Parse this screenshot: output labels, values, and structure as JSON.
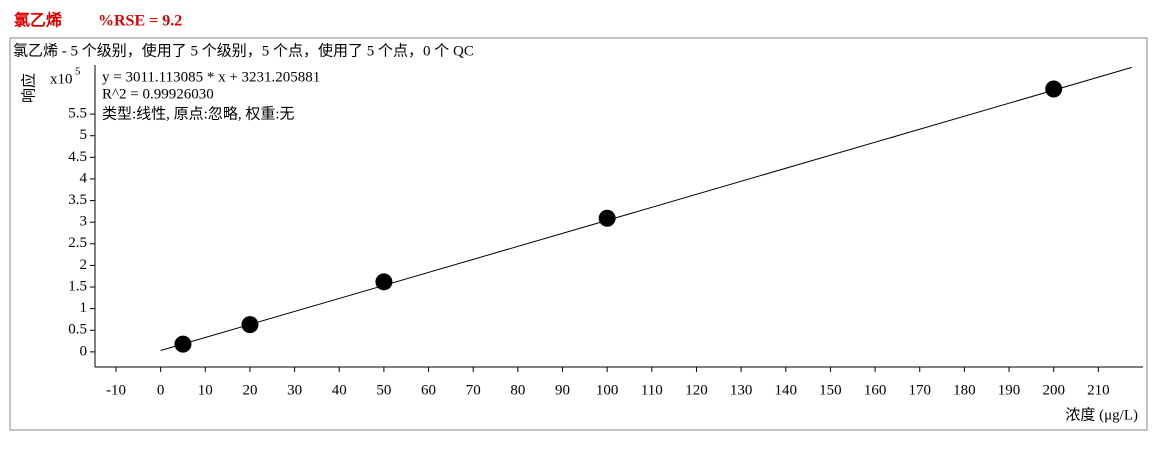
{
  "chart_data": {
    "type": "scatter",
    "title": "氯乙烯",
    "rse_label": "%RSE = 9.2",
    "subtitle": "氯乙烯 - 5 个级别，使用了 5 个级别，5 个点，使用了 5 个点，0 个 QC",
    "y_label": "响应",
    "y_multiplier": {
      "base": "x10",
      "exponent": "5"
    },
    "x_label": "浓度 (μg/L)",
    "annotations": [
      "y = 3011.113085 * x  + 3231.205881",
      "R^2 = 0.99926030",
      "类型:线性, 原点:忽略, 权重:无"
    ],
    "x": [
      5,
      20,
      50,
      100,
      200
    ],
    "values": [
      0.18,
      0.63,
      1.62,
      3.09,
      6.08
    ],
    "color": "#000000",
    "fit_line": {
      "x": [
        0,
        217.5
      ],
      "values": [
        0.032,
        6.58
      ]
    },
    "xlim": [
      -14.7,
      220
    ],
    "ylim": [
      -0.35,
      6.52
    ],
    "xticks": [
      -10,
      0,
      10,
      20,
      30,
      40,
      50,
      60,
      70,
      80,
      90,
      100,
      110,
      120,
      130,
      140,
      150,
      160,
      170,
      180,
      190,
      200,
      210
    ],
    "yticks": [
      0,
      0.5,
      1,
      1.5,
      2,
      2.5,
      3,
      3.5,
      4,
      4.5,
      5,
      5.5
    ]
  }
}
